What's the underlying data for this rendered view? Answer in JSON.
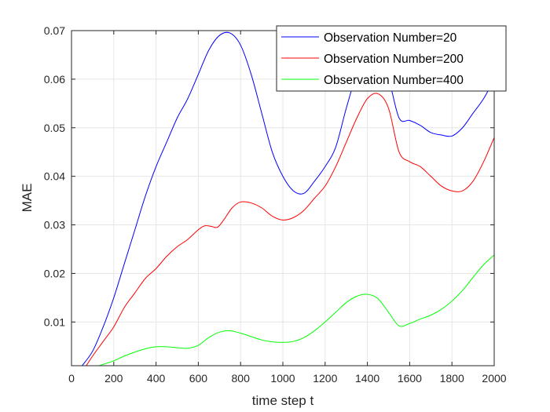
{
  "chart_data": {
    "type": "line",
    "title": "",
    "xlabel": "time step t",
    "ylabel": "MAE",
    "xlim": [
      0,
      2000
    ],
    "ylim": [
      0.001,
      0.07
    ],
    "xticks": [
      0,
      200,
      400,
      600,
      800,
      1000,
      1200,
      1400,
      1600,
      1800,
      2000
    ],
    "yticks": [
      0.01,
      0.02,
      0.03,
      0.04,
      0.05,
      0.06,
      0.07
    ],
    "xtick_labels": [
      "0",
      "200",
      "400",
      "600",
      "800",
      "1000",
      "1200",
      "1400",
      "1600",
      "1800",
      "2000"
    ],
    "ytick_labels": [
      "0.01",
      "0.02",
      "0.03",
      "0.04",
      "0.05",
      "0.06",
      "0.07"
    ],
    "grid": true,
    "legend_position": "top-right",
    "series": [
      {
        "name": "Observation Number=20",
        "color": "#0000ff",
        "x": [
          50,
          100,
          150,
          200,
          250,
          300,
          350,
          400,
          450,
          500,
          550,
          600,
          650,
          700,
          750,
          800,
          850,
          900,
          950,
          1000,
          1050,
          1100,
          1150,
          1200,
          1250,
          1300,
          1350,
          1400,
          1450,
          1500,
          1550,
          1600,
          1650,
          1700,
          1750,
          1800,
          1850,
          1900,
          1950,
          2000
        ],
        "y": [
          0.001,
          0.004,
          0.009,
          0.015,
          0.022,
          0.029,
          0.036,
          0.042,
          0.047,
          0.052,
          0.056,
          0.061,
          0.066,
          0.069,
          0.0695,
          0.067,
          0.061,
          0.053,
          0.045,
          0.04,
          0.037,
          0.0365,
          0.039,
          0.042,
          0.046,
          0.054,
          0.061,
          0.064,
          0.063,
          0.06,
          0.052,
          0.0515,
          0.0505,
          0.049,
          0.0485,
          0.0483,
          0.05,
          0.053,
          0.056,
          0.06
        ]
      },
      {
        "name": "Observation Number=200",
        "color": "#ff0000",
        "x": [
          70,
          100,
          150,
          200,
          250,
          300,
          350,
          400,
          450,
          500,
          550,
          600,
          630,
          660,
          690,
          720,
          760,
          800,
          850,
          900,
          950,
          1000,
          1050,
          1100,
          1150,
          1200,
          1250,
          1300,
          1350,
          1400,
          1450,
          1500,
          1550,
          1600,
          1650,
          1700,
          1750,
          1800,
          1850,
          1900,
          1950,
          2000
        ],
        "y": [
          0.001,
          0.003,
          0.006,
          0.009,
          0.013,
          0.016,
          0.019,
          0.021,
          0.0235,
          0.0255,
          0.027,
          0.029,
          0.0298,
          0.0297,
          0.0295,
          0.031,
          0.0335,
          0.0347,
          0.0345,
          0.0335,
          0.0318,
          0.031,
          0.0315,
          0.033,
          0.0355,
          0.038,
          0.042,
          0.047,
          0.052,
          0.056,
          0.057,
          0.054,
          0.045,
          0.043,
          0.042,
          0.04,
          0.038,
          0.037,
          0.037,
          0.039,
          0.043,
          0.048
        ]
      },
      {
        "name": "Observation Number=400",
        "color": "#00ff00",
        "x": [
          130,
          200,
          250,
          300,
          350,
          400,
          450,
          500,
          550,
          600,
          650,
          700,
          750,
          800,
          850,
          900,
          950,
          1000,
          1050,
          1100,
          1150,
          1200,
          1250,
          1300,
          1350,
          1400,
          1450,
          1500,
          1550,
          1600,
          1650,
          1700,
          1750,
          1800,
          1850,
          1900,
          1950,
          2000
        ],
        "y": [
          0.001,
          0.002,
          0.003,
          0.0038,
          0.0045,
          0.0049,
          0.0049,
          0.0047,
          0.0046,
          0.0052,
          0.0068,
          0.0079,
          0.0082,
          0.0077,
          0.007,
          0.0063,
          0.0059,
          0.0058,
          0.006,
          0.0068,
          0.0082,
          0.01,
          0.012,
          0.014,
          0.0153,
          0.0157,
          0.0148,
          0.012,
          0.0092,
          0.0097,
          0.0106,
          0.0114,
          0.0126,
          0.0143,
          0.0165,
          0.0192,
          0.0218,
          0.0238
        ]
      }
    ]
  }
}
